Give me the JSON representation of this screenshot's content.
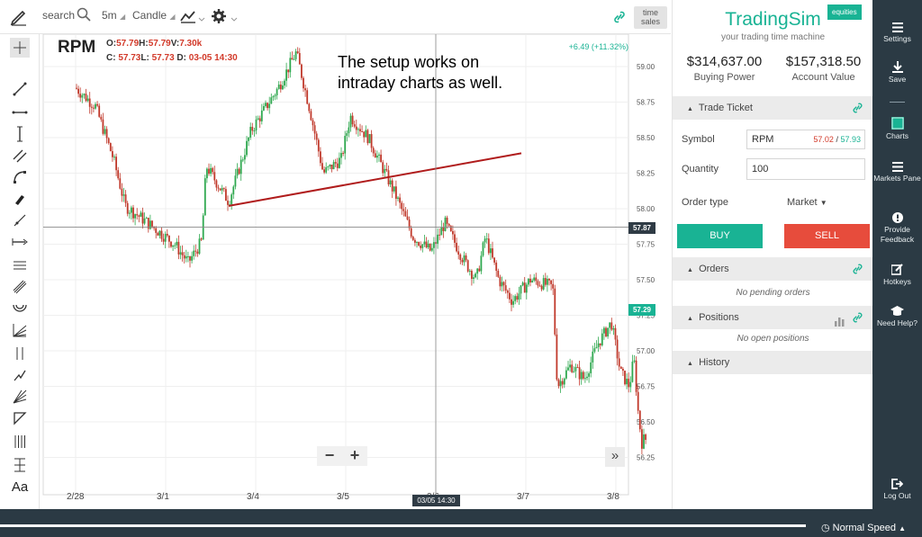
{
  "toolbar": {
    "search_label": "search",
    "interval": "5m",
    "chart_style": "Candle",
    "time_sales_label": "time sales"
  },
  "chart": {
    "symbol": "RPM",
    "ohlc": {
      "o_label": "O:",
      "o_value": "57.79",
      "h_label": "H:",
      "h_value": "57.79",
      "v_label": "V:",
      "v_value": "7.30k",
      "c_label": "C:",
      "c_value": "57.73",
      "l_label": "L:",
      "l_value": "57.73",
      "d_label": "D:",
      "d_value": "03-05 14:30"
    },
    "change": "+6.49 (+11.32%)",
    "annotation_line1": "The setup works on",
    "annotation_line2": "intraday charts as well.",
    "crosshair_time": "03/05 14:30",
    "crosshair_price": "57.87",
    "last_price": "57.29",
    "zoom_out_label": "−",
    "zoom_in_label": "+",
    "scroll_label": "»",
    "up_color": "#2fa84f",
    "down_color": "#c0392b",
    "trendline_color": "#b01c1c"
  },
  "chart_data": {
    "type": "candlestick",
    "x_ticks": [
      "2/28",
      "3/1",
      "3/4",
      "3/5",
      "3/6",
      "3/7",
      "3/8"
    ],
    "y_ticks": [
      "59.00",
      "58.75",
      "58.50",
      "58.25",
      "58.00",
      "57.75",
      "57.50",
      "57.25",
      "57.00",
      "56.75",
      "56.50",
      "56.25"
    ],
    "ylim": [
      56.12,
      59.2
    ],
    "xlim": [
      0,
      6.3
    ],
    "path": [
      [
        0,
        58.85
      ],
      [
        0.22,
        58.72
      ],
      [
        0.42,
        58.35
      ],
      [
        0.55,
        58.02
      ],
      [
        0.8,
        57.9
      ],
      [
        1.1,
        57.75
      ],
      [
        1.25,
        57.62
      ],
      [
        1.4,
        57.77
      ],
      [
        1.45,
        58.3
      ],
      [
        1.7,
        58.05
      ],
      [
        1.95,
        58.55
      ],
      [
        2.25,
        58.85
      ],
      [
        2.45,
        59.1
      ],
      [
        2.6,
        58.7
      ],
      [
        2.75,
        58.25
      ],
      [
        2.95,
        58.35
      ],
      [
        3.05,
        58.65
      ],
      [
        3.25,
        58.5
      ],
      [
        3.4,
        58.3
      ],
      [
        3.55,
        58.1
      ],
      [
        3.75,
        57.8
      ],
      [
        3.95,
        57.7
      ],
      [
        4.1,
        57.9
      ],
      [
        4.3,
        57.65
      ],
      [
        4.45,
        57.5
      ],
      [
        4.55,
        57.8
      ],
      [
        4.7,
        57.5
      ],
      [
        4.85,
        57.35
      ],
      [
        5.05,
        57.5
      ],
      [
        5.3,
        57.45
      ],
      [
        5.35,
        56.75
      ],
      [
        5.5,
        56.9
      ],
      [
        5.65,
        56.8
      ],
      [
        5.8,
        57.05
      ],
      [
        5.95,
        57.2
      ],
      [
        6.05,
        56.85
      ],
      [
        6.15,
        56.75
      ],
      [
        6.2,
        56.95
      ],
      [
        6.25,
        56.55
      ],
      [
        6.3,
        56.3
      ],
      [
        6.32,
        56.45
      ],
      [
        6.35,
        56.25
      ]
    ],
    "annotations": [
      {
        "type": "trendline",
        "from": [
          1.7,
          58.02
        ],
        "to": [
          4.95,
          58.39
        ]
      },
      {
        "type": "crosshair",
        "x": 4.0,
        "y": 57.87
      }
    ]
  },
  "panel": {
    "brand": "TradingSim",
    "tagline": "your trading time machine",
    "equities_badge": "equities",
    "buying_power_value": "$314,637.00",
    "buying_power_label": "Buying Power",
    "account_value_value": "$157,318.50",
    "account_value_label": "Account Value",
    "trade_ticket_label": "Trade Ticket",
    "symbol_label": "Symbol",
    "symbol_value": "RPM",
    "bid": "57.02",
    "ask": "57.93",
    "bid_ask_sep": "/",
    "quantity_label": "Quantity",
    "quantity_value": "100",
    "order_type_label": "Order type",
    "order_type_value": "Market",
    "buy_label": "BUY",
    "sell_label": "SELL",
    "orders_label": "Orders",
    "orders_empty": "No pending orders",
    "positions_label": "Positions",
    "positions_empty": "No open positions",
    "history_label": "History",
    "accent_color": "#19b394",
    "sell_color": "#e74c3c"
  },
  "sidebar": {
    "settings": "Settings",
    "save": "Save",
    "charts": "Charts",
    "markets_pane": "Markets Pane",
    "feedback": "Provide Feedback",
    "hotkeys": "Hotkeys",
    "help": "Need Help?",
    "logout": "Log Out"
  },
  "statusbar": {
    "speed_label": "Normal Speed"
  }
}
